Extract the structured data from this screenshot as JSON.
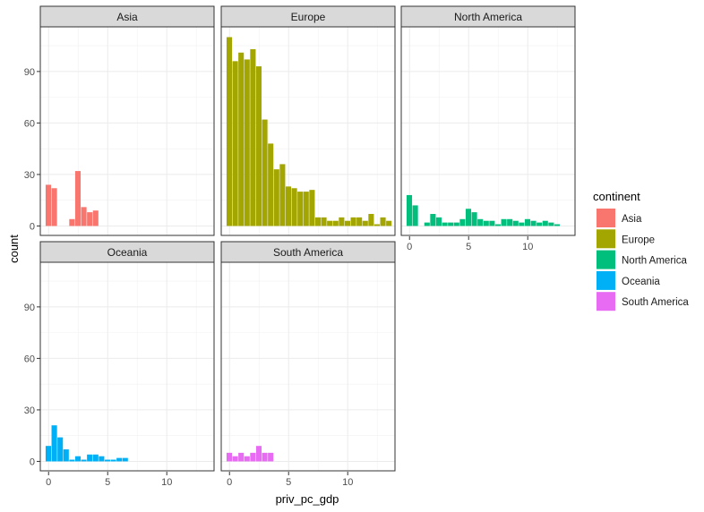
{
  "chart_data": {
    "type": "bar",
    "xlabel": "priv_pc_gdp",
    "ylabel": "count",
    "x_ticks": [
      0,
      5,
      10
    ],
    "y_ticks": [
      0,
      30,
      60,
      90
    ],
    "xlim": [
      -0.7,
      14.0
    ],
    "ylim": [
      -5.5,
      116
    ],
    "grid": true,
    "legend": {
      "title": "continent",
      "position": "right",
      "entries": [
        {
          "name": "Asia",
          "color": "#F8766D"
        },
        {
          "name": "Europe",
          "color": "#A3A500"
        },
        {
          "name": "North America",
          "color": "#00BF7D"
        },
        {
          "name": "Oceania",
          "color": "#00B0F6"
        },
        {
          "name": "South America",
          "color": "#E76BF3"
        }
      ]
    },
    "bin_width": 0.5,
    "series": [
      {
        "name": "Asia",
        "color": "#F8766D",
        "bins": [
          [
            0,
            24
          ],
          [
            0.5,
            22
          ],
          [
            2,
            4
          ],
          [
            2.5,
            32
          ],
          [
            3,
            11
          ],
          [
            3.5,
            8
          ],
          [
            4,
            9
          ]
        ]
      },
      {
        "name": "Europe",
        "color": "#A3A500",
        "bins": [
          [
            0,
            110
          ],
          [
            0.5,
            96
          ],
          [
            1,
            101
          ],
          [
            1.5,
            97
          ],
          [
            2,
            103
          ],
          [
            2.5,
            93
          ],
          [
            3,
            62
          ],
          [
            3.5,
            48
          ],
          [
            4,
            33
          ],
          [
            4.5,
            36
          ],
          [
            5,
            23
          ],
          [
            5.5,
            22
          ],
          [
            6,
            20
          ],
          [
            6.5,
            20
          ],
          [
            7,
            21
          ],
          [
            7.5,
            5
          ],
          [
            8,
            5
          ],
          [
            8.5,
            3
          ],
          [
            9,
            3
          ],
          [
            9.5,
            5
          ],
          [
            10,
            3
          ],
          [
            10.5,
            5
          ],
          [
            11,
            5
          ],
          [
            11.5,
            3
          ],
          [
            12,
            7
          ],
          [
            12.5,
            1
          ],
          [
            13,
            5
          ],
          [
            13.5,
            3
          ]
        ]
      },
      {
        "name": "North America",
        "color": "#00BF7D",
        "bins": [
          [
            0,
            18
          ],
          [
            0.5,
            12
          ],
          [
            1.5,
            2
          ],
          [
            2,
            7
          ],
          [
            2.5,
            5
          ],
          [
            3,
            2
          ],
          [
            3.5,
            2
          ],
          [
            4,
            2
          ],
          [
            4.5,
            4
          ],
          [
            5,
            10
          ],
          [
            5.5,
            8
          ],
          [
            6,
            4
          ],
          [
            6.5,
            3
          ],
          [
            7,
            3
          ],
          [
            7.5,
            1
          ],
          [
            8,
            4
          ],
          [
            8.5,
            4
          ],
          [
            9,
            3
          ],
          [
            9.5,
            2
          ],
          [
            10,
            4
          ],
          [
            10.5,
            3
          ],
          [
            11,
            2
          ],
          [
            11.5,
            3
          ],
          [
            12,
            2
          ],
          [
            12.5,
            1
          ]
        ]
      },
      {
        "name": "Oceania",
        "color": "#00B0F6",
        "bins": [
          [
            0,
            9
          ],
          [
            0.5,
            21
          ],
          [
            1,
            14
          ],
          [
            1.5,
            7
          ],
          [
            2,
            1
          ],
          [
            2.5,
            3
          ],
          [
            3,
            1
          ],
          [
            3.5,
            4
          ],
          [
            4,
            4
          ],
          [
            4.5,
            3
          ],
          [
            5,
            1
          ],
          [
            5.5,
            1
          ],
          [
            6,
            2
          ],
          [
            6.5,
            2
          ]
        ]
      },
      {
        "name": "South America",
        "color": "#E76BF3",
        "bins": [
          [
            0,
            5
          ],
          [
            0.5,
            3
          ],
          [
            1,
            5
          ],
          [
            1.5,
            3
          ],
          [
            2,
            5
          ],
          [
            2.5,
            9
          ],
          [
            3,
            5
          ],
          [
            3.5,
            5
          ]
        ]
      }
    ]
  }
}
